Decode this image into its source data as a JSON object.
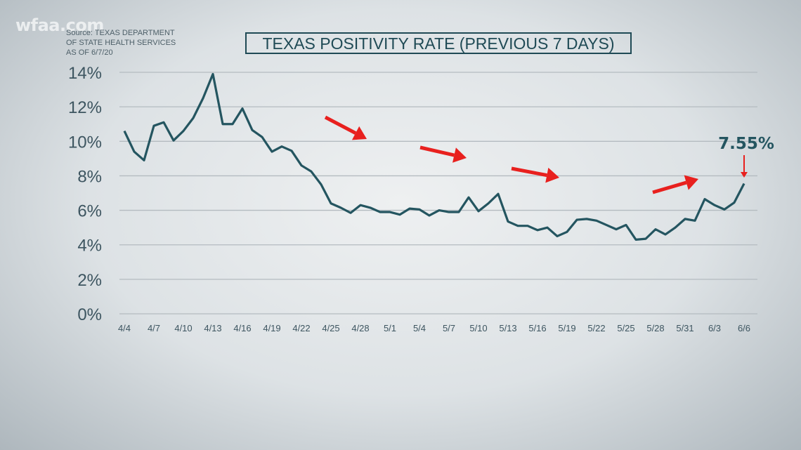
{
  "branding": {
    "logo": "wfaa.com"
  },
  "source": [
    "Source: TEXAS DEPARTMENT",
    "OF STATE HEALTH SERVICES",
    "AS OF 6/7/20"
  ],
  "chart_data": {
    "type": "line",
    "title": "TEXAS POSITIVITY RATE (PREVIOUS 7 DAYS)",
    "xlabel": "",
    "ylabel": "",
    "ylim": [
      0,
      14
    ],
    "yticks": [
      "0%",
      "2%",
      "4%",
      "6%",
      "8%",
      "10%",
      "12%",
      "14%"
    ],
    "ytick_values": [
      0,
      2,
      4,
      6,
      8,
      10,
      12,
      14
    ],
    "xtick_labels": [
      "4/4",
      "4/7",
      "4/10",
      "4/13",
      "4/16",
      "4/19",
      "4/22",
      "4/25",
      "4/28",
      "5/1",
      "5/4",
      "5/7",
      "5/10",
      "5/13",
      "5/16",
      "5/19",
      "5/22",
      "5/25",
      "5/28",
      "5/31",
      "6/3",
      "6/6"
    ],
    "grid": true,
    "x_start": "4/4",
    "x_end": "6/6",
    "series": [
      {
        "name": "Positivity rate (%)",
        "color": "#245560",
        "values": [
          10.6,
          9.4,
          8.9,
          10.9,
          11.1,
          10.05,
          10.6,
          11.35,
          12.5,
          13.9,
          11.0,
          11.0,
          11.9,
          10.65,
          10.25,
          9.4,
          9.7,
          9.45,
          8.6,
          8.25,
          7.5,
          6.4,
          6.15,
          5.85,
          6.3,
          6.15,
          5.9,
          5.9,
          5.75,
          6.1,
          6.05,
          5.7,
          6.0,
          5.9,
          5.9,
          6.75,
          5.95,
          6.4,
          6.95,
          5.35,
          5.1,
          5.1,
          4.85,
          5.0,
          4.5,
          4.75,
          5.45,
          5.5,
          5.4,
          5.15,
          4.9,
          5.15,
          4.3,
          4.35,
          4.9,
          4.6,
          5.0,
          5.5,
          5.4,
          6.65,
          6.3,
          6.05,
          6.45,
          7.55
        ]
      }
    ],
    "annotations": [
      {
        "text": "7.55%",
        "color": "#245560",
        "arrow_color": "#e8201e"
      }
    ],
    "trend_arrows": [
      {
        "direction": "down",
        "color": "#e8201e"
      },
      {
        "direction": "down",
        "color": "#e8201e"
      },
      {
        "direction": "down",
        "color": "#e8201e"
      },
      {
        "direction": "up",
        "color": "#e8201e"
      }
    ]
  }
}
